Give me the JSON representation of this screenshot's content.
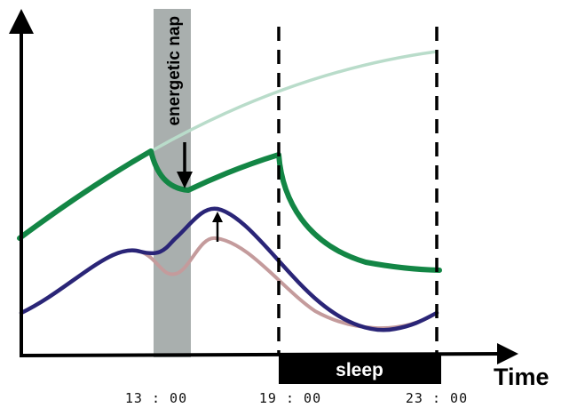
{
  "diagram": {
    "nap_label": "energetic nap",
    "sleep_label": "sleep",
    "x_axis_label": "Time",
    "ticks": [
      "13 : 00",
      "19 : 00",
      "23 : 00"
    ]
  },
  "colors": {
    "nap_band": "#a9afae",
    "green_curve": "#138645",
    "faded_green_curve": "#b9dcca",
    "blue_curve": "#2a2577",
    "pink_curve": "#c49b9c",
    "sleep_bar": "#000000",
    "axis": "#000000"
  }
}
